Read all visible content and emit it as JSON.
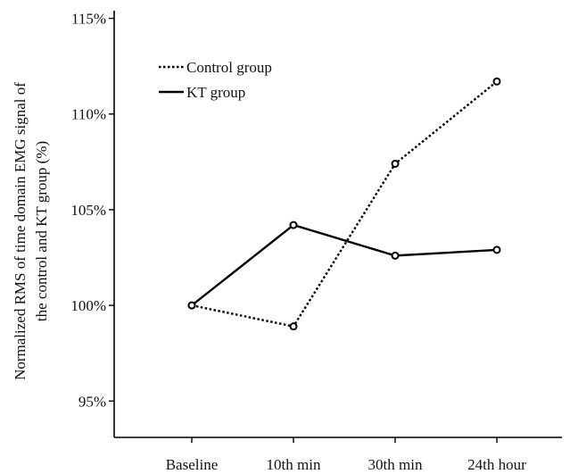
{
  "chart_data": {
    "type": "line",
    "categories": [
      "Baseline",
      "10th min",
      "30th min",
      "24th hour"
    ],
    "series": [
      {
        "name": "Control group",
        "values": [
          100.0,
          98.9,
          107.4,
          111.7
        ],
        "line_style": "dotted"
      },
      {
        "name": "KT group",
        "values": [
          100.0,
          104.2,
          102.6,
          102.9
        ],
        "line_style": "solid"
      }
    ],
    "ylabel_lines": [
      "Normalized RMS of time domain EMG signal of",
      "the control and KT group (%)"
    ],
    "yticks": [
      95,
      100,
      105,
      110,
      115
    ],
    "ytick_labels": [
      "95%",
      "100%",
      "105%",
      "110%",
      "115%"
    ],
    "ylim": [
      93.1,
      115.4
    ],
    "grid": false,
    "legend_position": "top-left",
    "colors": {
      "line": "#000000",
      "marker_fill": "#ffffff"
    }
  }
}
